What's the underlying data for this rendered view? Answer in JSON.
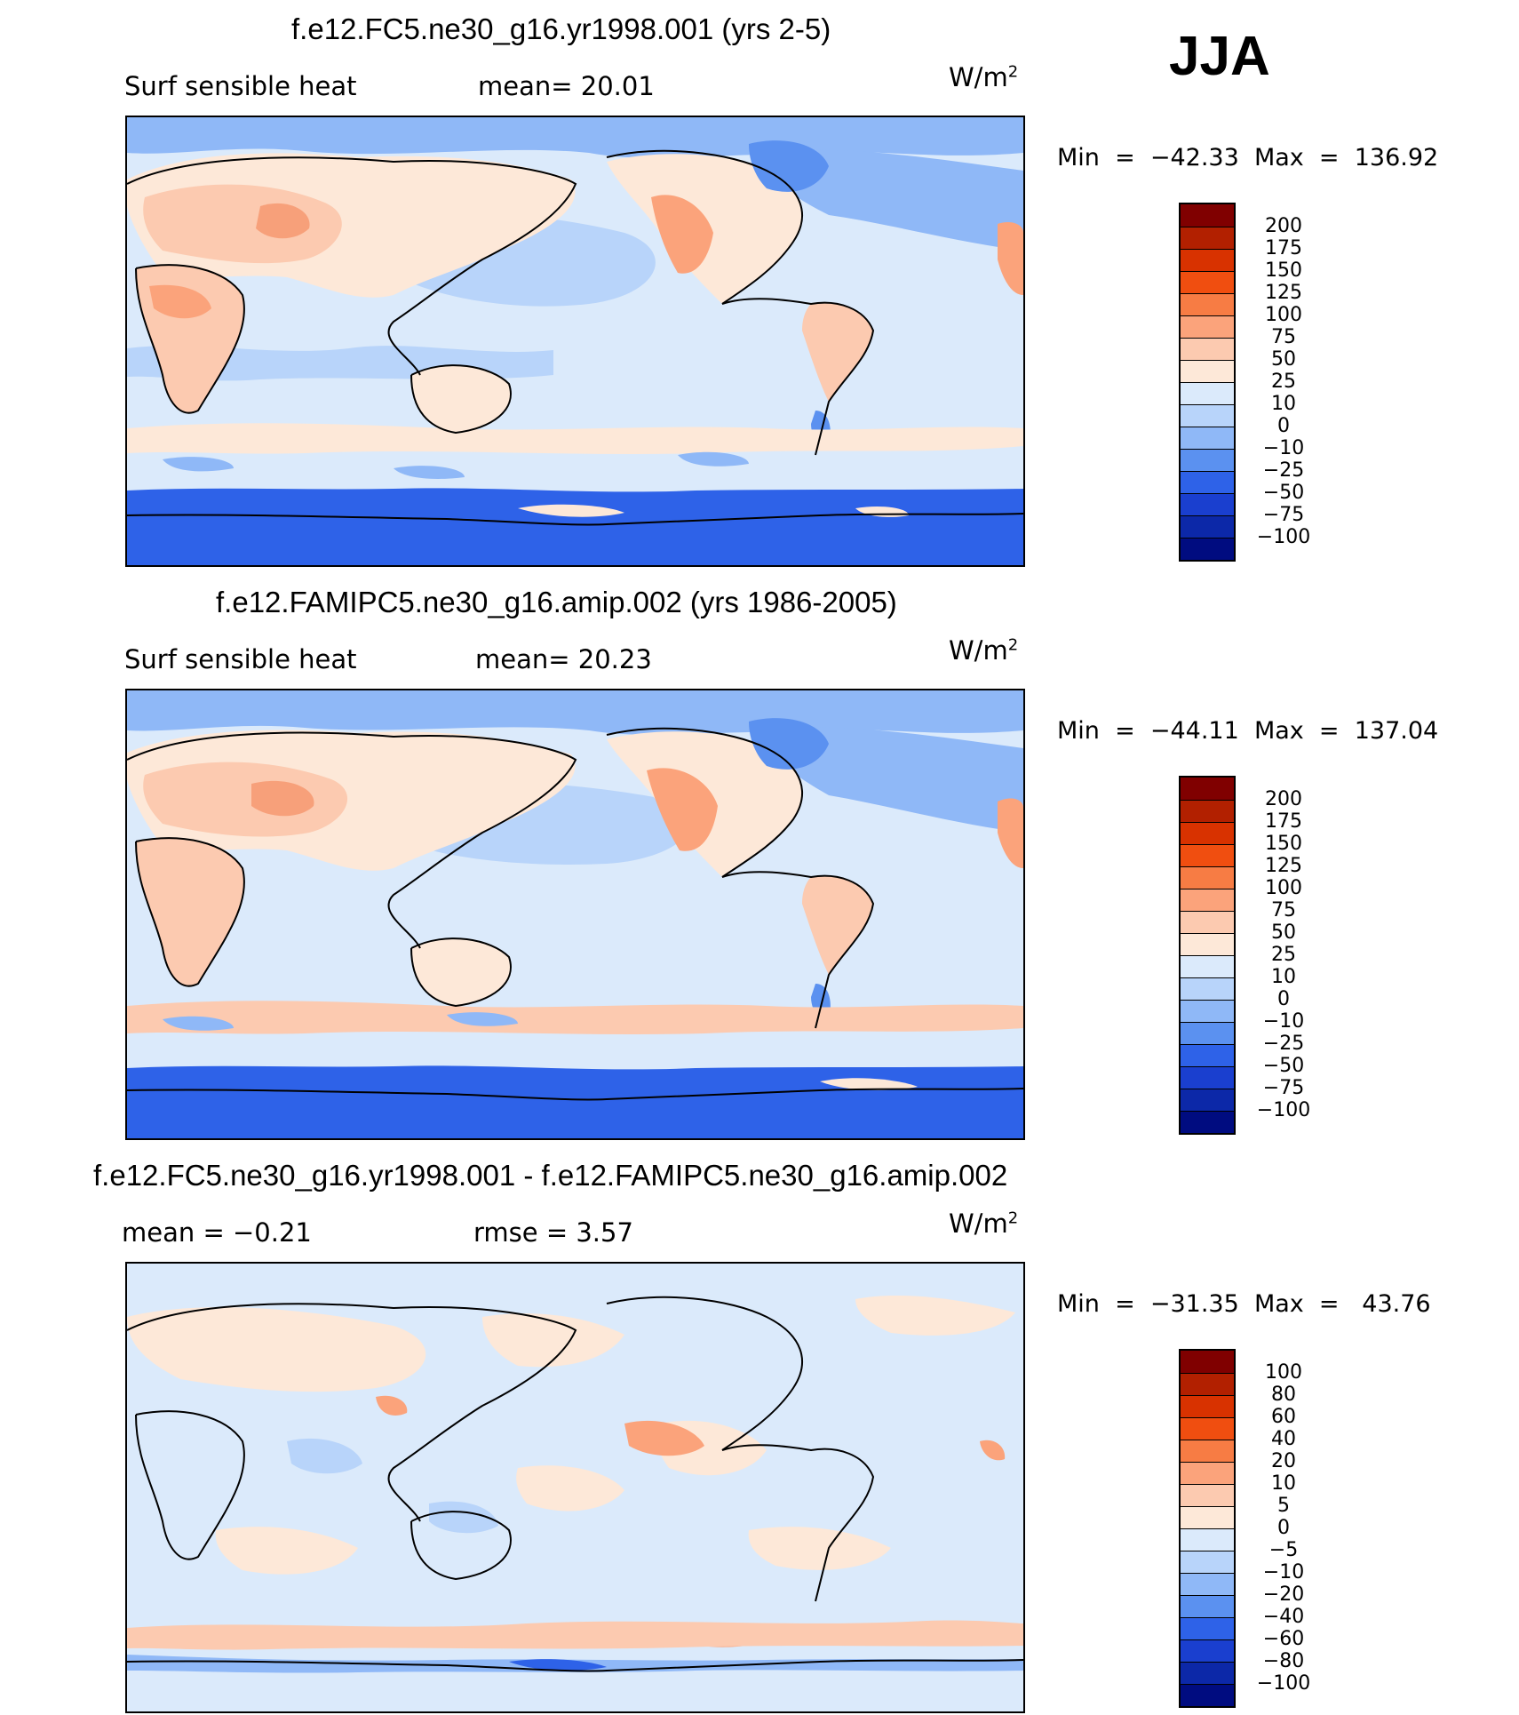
{
  "season": "JJA",
  "units_label": "W/m",
  "units_exp": "2",
  "panels": [
    {
      "title": "f.e12.FC5.ne30_g16.yr1998.001 (yrs 2-5)",
      "left_text": "Surf  sensible  heat",
      "stat_text": "mean=   20.01",
      "minmax": "Min  =  −42.33  Max  =  136.92",
      "scale": "absolute"
    },
    {
      "title": "f.e12.FAMIPC5.ne30_g16.amip.002 (yrs 1986-2005)",
      "left_text": "Surf  sensible  heat",
      "stat_text": "mean=   20.23",
      "minmax": "Min  =  −44.11  Max  =  137.04",
      "scale": "absolute"
    },
    {
      "title": "f.e12.FC5.ne30_g16.yr1998.001 - f.e12.FAMIPC5.ne30_g16.amip.002",
      "left_text": "mean  =    −0.21",
      "stat_text": "rmse  =     3.57",
      "minmax": "Min  =  −31.35  Max  =   43.76",
      "scale": "difference"
    }
  ],
  "colorbars": {
    "absolute": {
      "labels": [
        "200",
        "175",
        "150",
        "125",
        "100",
        "75",
        "50",
        "25",
        "10",
        "0",
        "−10",
        "−25",
        "−50",
        "−75",
        "−100"
      ],
      "colors": [
        "#800000",
        "#b22000",
        "#d83200",
        "#f04e10",
        "#f77c44",
        "#fba37b",
        "#fccab0",
        "#fde8d8",
        "#dbeafb",
        "#b8d4fa",
        "#8fb8f7",
        "#5b91f0",
        "#2e62e8",
        "#1a3fcf",
        "#0c28a8",
        "#000c80"
      ]
    },
    "difference": {
      "labels": [
        "100",
        "80",
        "60",
        "40",
        "20",
        "10",
        "5",
        "0",
        "−5",
        "−10",
        "−20",
        "−40",
        "−60",
        "−80",
        "−100"
      ],
      "colors": [
        "#800000",
        "#b22000",
        "#d83200",
        "#f04e10",
        "#f77c44",
        "#fba37b",
        "#fccab0",
        "#fde8d8",
        "#dbeafb",
        "#b8d4fa",
        "#8fb8f7",
        "#5b91f0",
        "#2e62e8",
        "#1a3fcf",
        "#0c28a8",
        "#000c80"
      ]
    }
  },
  "chart_data": [
    {
      "type": "heatmap",
      "title": "f.e12.FC5.ne30_g16.yr1998.001 (yrs 2-5)",
      "variable": "Surf sensible heat",
      "units": "W/m2",
      "season": "JJA",
      "mean": 20.01,
      "min": -42.33,
      "max": 136.92,
      "contour_levels": [
        -100,
        -75,
        -50,
        -25,
        -10,
        0,
        10,
        25,
        50,
        75,
        100,
        125,
        150,
        175,
        200
      ]
    },
    {
      "type": "heatmap",
      "title": "f.e12.FAMIPC5.ne30_g16.amip.002 (yrs 1986-2005)",
      "variable": "Surf sensible heat",
      "units": "W/m2",
      "season": "JJA",
      "mean": 20.23,
      "min": -44.11,
      "max": 137.04,
      "contour_levels": [
        -100,
        -75,
        -50,
        -25,
        -10,
        0,
        10,
        25,
        50,
        75,
        100,
        125,
        150,
        175,
        200
      ]
    },
    {
      "type": "heatmap",
      "title": "f.e12.FC5.ne30_g16.yr1998.001 - f.e12.FAMIPC5.ne30_g16.amip.002",
      "units": "W/m2",
      "season": "JJA",
      "mean": -0.21,
      "rmse": 3.57,
      "min": -31.35,
      "max": 43.76,
      "contour_levels": [
        -100,
        -80,
        -60,
        -40,
        -20,
        -10,
        -5,
        0,
        5,
        10,
        20,
        40,
        60,
        80,
        100
      ]
    }
  ]
}
